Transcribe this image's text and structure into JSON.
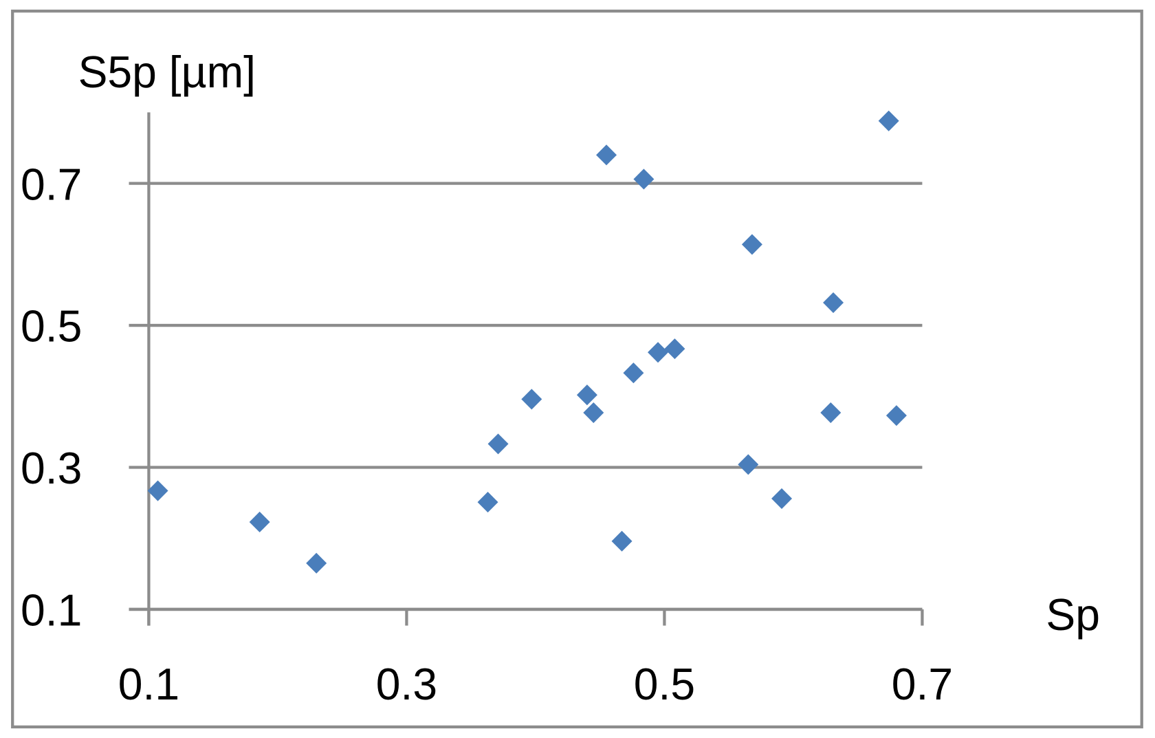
{
  "chart_data": {
    "type": "scatter",
    "y_label": "S5p [µm]",
    "x_label": "Sp",
    "x": [
      0.107,
      0.186,
      0.23,
      0.363,
      0.371,
      0.397,
      0.44,
      0.445,
      0.455,
      0.467,
      0.476,
      0.484,
      0.495,
      0.508,
      0.565,
      0.568,
      0.591,
      0.629,
      0.631,
      0.674,
      0.68
    ],
    "values": [
      0.267,
      0.223,
      0.165,
      0.251,
      0.333,
      0.396,
      0.402,
      0.377,
      0.74,
      0.196,
      0.433,
      0.706,
      0.462,
      0.467,
      0.304,
      0.614,
      0.256,
      0.377,
      0.532,
      0.788,
      0.373
    ],
    "color": "#4a7ebb",
    "xlim": [
      0.1,
      0.7
    ],
    "xticks": [
      0.1,
      0.3,
      0.5,
      0.7
    ],
    "ylim": [
      0.1,
      0.8
    ],
    "yticks": [
      0.1,
      0.3,
      0.5,
      0.7
    ],
    "grid": true
  }
}
